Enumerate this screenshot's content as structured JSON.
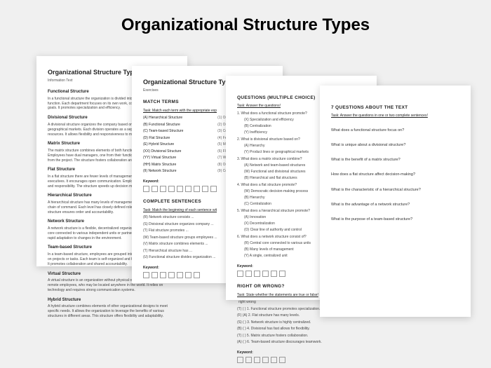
{
  "title": "Organizational Structure Types",
  "colors": {
    "bg": "#f0f0f0",
    "page": "#ffffff",
    "text": "#222222",
    "shadow": "rgba(0,0,0,0.18)"
  },
  "page1": {
    "heading": "Organizational Structure Types",
    "subtitle": "Information Text",
    "sections": [
      {
        "h": "Functional Structure",
        "t": "In a functional structure the organization is divided into departments based on function. Each department focuses on its own work, contributing to the overall goals. It promotes specialization and efficiency."
      },
      {
        "h": "Divisional Structure",
        "t": "A divisional structure organizes the company based on its products or geographical markets. Each division operates as a separate business with its own resources. It allows flexibility and responsiveness to market changes."
      },
      {
        "h": "Matrix Structure",
        "t": "The matrix structure combines elements of both functional and project structures. Employees have dual managers, one from their functional department and one from the project. The structure fosters collaboration and communication."
      },
      {
        "h": "Flat Structure",
        "t": "In a flat structure there are fewer levels of management between staff and executives. It encourages open communication. Employees have more autonomy and responsibility. The structure speeds up decision making."
      },
      {
        "h": "Hierarchical Structure",
        "t": "A hierarchical structure has many levels of management. It establishes a clear chain of command. Each level has closely defined roles and responsibilities. This structure ensures order and accountability."
      },
      {
        "h": "Network Structure",
        "t": "A network structure is a flexible, decentralized organization. It relies on a central core connected to various independent units or partners. This structure allows rapid adaptation to changes in the environment."
      },
      {
        "h": "Team-based Structure",
        "t": "In a team-based structure, employees are grouped into teams that work together on projects or tasks. Each team is self-organized and handles outcomes for itself. It promotes collaboration and shared accountability."
      },
      {
        "h": "Virtual Structure",
        "t": "A virtual structure is an organization without physical offices. Work is done by remote employees, who may be located anywhere in the world. It relies on technology and requires strong communication systems."
      },
      {
        "h": "Hybrid Structure",
        "t": "A hybrid structure combines elements of other organizational designs to meet specific needs. It allows the organization to leverage the benefits of various structures in different areas. This structure offers flexibility and adaptability."
      }
    ]
  },
  "page2": {
    "heading": "Organizational Structure Type",
    "subtitle": "Exercises",
    "match_title": "MATCH TERMS",
    "match_task": "Task: Match each term with the appropriate exp",
    "match_rows": [
      {
        "l": "(A) Hierarchical Structure",
        "r": "(1) Org"
      },
      {
        "l": "(B) Functional Structure",
        "r": "(2) Org"
      },
      {
        "l": "(C) Team-based Structure",
        "r": "(3) Con"
      },
      {
        "l": "(D) Flat Structure",
        "r": "(4) Few"
      },
      {
        "l": "(E) Hybrid Structure",
        "r": "(5) Mat"
      },
      {
        "l": "(XX) Divisional Structure",
        "r": "(6) Flex"
      },
      {
        "l": "(YY) Virtual Structure",
        "r": "(7) Wit"
      },
      {
        "l": "(HH) Matrix Structure",
        "r": "(8) Org"
      },
      {
        "l": "(II) Network Structure",
        "r": "(9) Cen"
      }
    ],
    "kw": "Keyword:",
    "complete_title": "COMPLETE SENTENCES",
    "complete_task": "Task: Match the beginning of each sentence wit",
    "complete_items": [
      "(R) Network structure consists ...",
      "(S) Divisional structure organizes company ...",
      "(T) Flat structure promotes ...",
      "(W) Team-based structure groups employees ...",
      "(V) Matrix structure combines elements ...",
      "(T) Hierarchical structure has ...",
      "(U) Functional structure divides organization ..."
    ]
  },
  "page3": {
    "mc_title": "QUESTIONS (MULTIPLE CHOICE)",
    "mc_task": "Task: Answer the questions!",
    "questions": [
      {
        "q": "1. What does a functional structure promote?",
        "opts": [
          "(X) Specialization and efficiency",
          "(B) Centralization",
          "(Y) Inefficiency"
        ]
      },
      {
        "q": "2. What is divisional structure based on?",
        "opts": [
          "(A) Hierarchy",
          "(Y) Product lines or geographical markets"
        ]
      },
      {
        "q": "3. What does a matrix structure combine?",
        "opts": [
          "(A) Network and team-based structures",
          "(W) Functional and divisional structures",
          "(B) Hierarchical and flat structures"
        ]
      },
      {
        "q": "4. What does a flat structure promote?",
        "opts": [
          "(W) Democratic decision-making process",
          "(B) Hierarchy",
          "(C) Centralization"
        ]
      },
      {
        "q": "5. What does a hierarchical structure promote?",
        "opts": [
          "(A) Innovation",
          "(X) Decentralization",
          "(O) Clear line of authority and control"
        ]
      },
      {
        "q": "6. What does a network structure consist of?",
        "opts": [
          "(R) Central core connected to various units",
          "(B) Many levels of management",
          "(Y) A single, centralized unit"
        ]
      }
    ],
    "kw": "Keyword:",
    "rw_title": "RIGHT OR WRONG?",
    "rw_task": "Task: State whether the statements are true or false!",
    "rw_head": "right   wrong",
    "rw_items": [
      "(T)  ( )  1. Functional structure promotes specialization.",
      "(F)  (A)  2. Flat structure has many levels.",
      "(S)  ( )  3. Network structure is highly centralized.",
      "(B)  ( )  4. Divisional has fast allows for flexibility.",
      "(T)  ( )  5. Matrix structure fosters collaboration.",
      "(A)  ( )  6. Team-based structure discourages teamwork."
    ]
  },
  "page4": {
    "title": "7 QUESTIONS ABOUT THE TEXT",
    "task": "Task: Answer the questions in one or two complete sentences!",
    "qs": [
      "What does a functional structure focus on?",
      "What is unique about a divisional structure?",
      "What is the benefit of a matrix structure?",
      "How does a flat structure affect decision-making?",
      "What is the characteristic of a hierarchical structure?",
      "What is the advantage of a network structure?",
      "What is the purpose of a team-based structure?"
    ]
  }
}
